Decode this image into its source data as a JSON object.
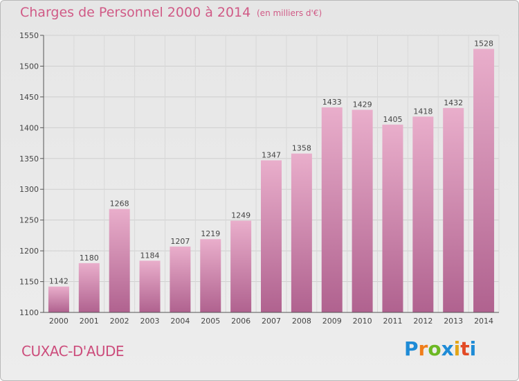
{
  "title": "Charges de Personnel 2000 à 2014",
  "subtitle": "(en milliers d'€)",
  "commune": "CUXAC-D'AUDE",
  "logo": {
    "letters": [
      "P",
      "r",
      "o",
      "x",
      "i",
      "t",
      "i"
    ],
    "colors": [
      "#1e8bd6",
      "#f07d1a",
      "#6cb823",
      "#1e8bd6",
      "#e2a518",
      "#e24a25",
      "#1e8bd6"
    ]
  },
  "colors": {
    "bar_top": "#e9aecb",
    "bar_bottom": "#b0628f",
    "text": "#444444",
    "title": "#d05a86"
  },
  "chart_data": {
    "type": "bar",
    "categories": [
      "2000",
      "2001",
      "2002",
      "2003",
      "2004",
      "2005",
      "2006",
      "2007",
      "2008",
      "2009",
      "2010",
      "2011",
      "2012",
      "2013",
      "2014"
    ],
    "values": [
      1142,
      1180,
      1268,
      1184,
      1207,
      1219,
      1249,
      1347,
      1358,
      1433,
      1429,
      1405,
      1418,
      1432,
      1528
    ],
    "ylim": [
      1100,
      1550
    ],
    "yticks": [
      1100,
      1150,
      1200,
      1250,
      1300,
      1350,
      1400,
      1450,
      1500,
      1550
    ],
    "grid": true,
    "data_labels": true
  }
}
